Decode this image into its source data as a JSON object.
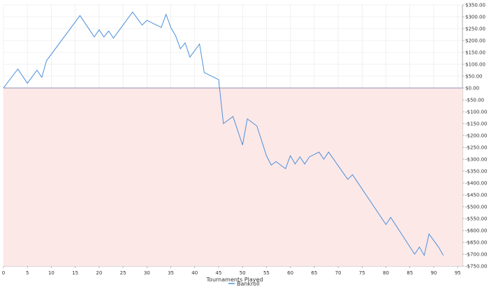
{
  "colors": {
    "line": "#4a90d9",
    "negative_fill": "#fde8e8",
    "zero_line": "#8a8fb0",
    "grid": "#e6e6e6",
    "axis": "#9a9a9a"
  },
  "chart_data": {
    "type": "line",
    "title": "",
    "xlabel": "Tournaments Played",
    "ylabel": "",
    "xlim": [
      0,
      96
    ],
    "ylim": [
      -750,
      350
    ],
    "x_ticks": [
      0,
      5,
      10,
      15,
      20,
      25,
      30,
      35,
      40,
      45,
      50,
      55,
      60,
      65,
      70,
      75,
      80,
      85,
      90,
      95
    ],
    "y_ticks": [
      350,
      300,
      250,
      200,
      150,
      100,
      50,
      0,
      -50,
      -100,
      -150,
      -200,
      -250,
      -300,
      -350,
      -400,
      -450,
      -500,
      -550,
      -600,
      -650,
      -700,
      -750
    ],
    "y_tick_labels": [
      "$350.00",
      "$300.00",
      "$250.00",
      "$200.00",
      "$150.00",
      "$100.00",
      "$50.00",
      "$0.00",
      "-$50.00",
      "-$100.00",
      "-$150.00",
      "-$200.00",
      "-$250.00",
      "-$300.00",
      "-$350.00",
      "-$400.00",
      "-$450.00",
      "-$500.00",
      "-$550.00",
      "-$600.00",
      "-$650.00",
      "-$700.00",
      "-$750.00"
    ],
    "grid": true,
    "legend_position": "bottom-center",
    "negative_region_shaded": true,
    "series": [
      {
        "name": "Bankroll",
        "x": [
          0,
          3,
          5,
          7,
          8,
          9,
          16,
          19,
          20,
          21,
          22,
          23,
          27,
          29,
          30,
          33,
          34,
          35,
          36,
          37,
          38,
          39,
          41,
          42,
          45,
          46,
          48,
          50,
          51,
          53,
          55,
          56,
          57,
          59,
          60,
          61,
          62,
          63,
          64,
          66,
          67,
          68,
          72,
          73,
          80,
          81,
          86,
          87,
          88,
          89,
          91,
          92
        ],
        "y": [
          0,
          80,
          20,
          75,
          45,
          115,
          305,
          215,
          245,
          215,
          240,
          210,
          320,
          265,
          285,
          255,
          310,
          255,
          220,
          165,
          190,
          130,
          185,
          65,
          35,
          -150,
          -120,
          -240,
          -130,
          -160,
          -285,
          -325,
          -310,
          -340,
          -285,
          -320,
          -290,
          -320,
          -290,
          -270,
          -300,
          -270,
          -385,
          -365,
          -575,
          -545,
          -700,
          -670,
          -705,
          -615,
          -670,
          -705
        ]
      }
    ]
  }
}
